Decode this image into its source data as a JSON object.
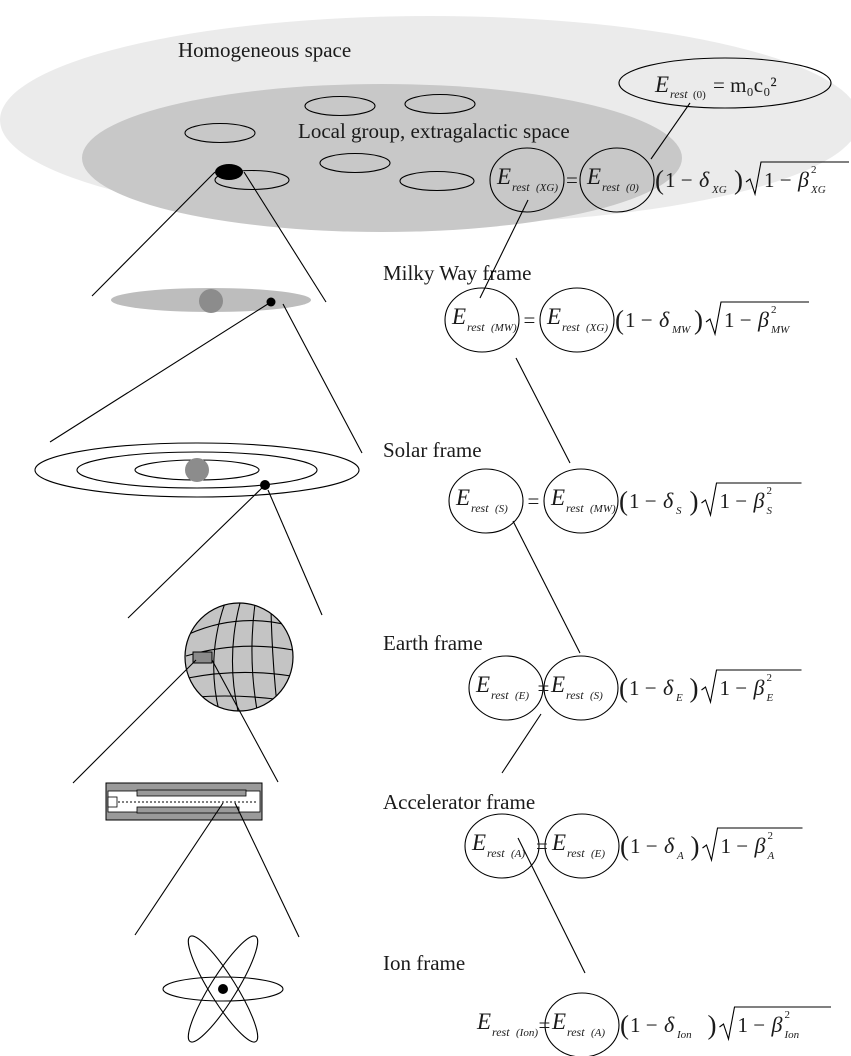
{
  "labels": {
    "homogeneous": "Homogeneous space",
    "local_group": "Local group, extragalactic space",
    "milky_way": "Milky Way frame",
    "solar": "Solar frame",
    "earth": "Earth frame",
    "accelerator": "Accelerator frame",
    "ion": "Ion frame"
  },
  "equations": {
    "base": {
      "lhs": "E",
      "lhs_sub": "rest(0)",
      "rhs": "= m₀c₀²"
    },
    "xg": {
      "lhs_sub": "XG",
      "rhs_sub": "0",
      "delta_sub": "XG",
      "beta_sub": "XG"
    },
    "mw": {
      "lhs_sub": "MW",
      "rhs_sub": "XG",
      "delta_sub": "MW",
      "beta_sub": "MW"
    },
    "s": {
      "lhs_sub": "S",
      "rhs_sub": "MW",
      "delta_sub": "S",
      "beta_sub": "S"
    },
    "e": {
      "lhs_sub": "E",
      "rhs_sub": "S",
      "delta_sub": "E",
      "beta_sub": "E"
    },
    "a": {
      "lhs_sub": "A",
      "rhs_sub": "E",
      "delta_sub": "A",
      "beta_sub": "A"
    },
    "ion": {
      "lhs_sub": "Ion",
      "rhs_sub": "A",
      "delta_sub": "Ion",
      "beta_sub": "Ion"
    }
  },
  "symbols": {
    "E": "E",
    "rest": "rest",
    "equals": "=",
    "one_minus": "1 −",
    "delta": "δ",
    "beta": "β",
    "sq": "2",
    "open_paren": "(",
    "close_paren": ")"
  },
  "colors": {
    "outer_space": "#ebebeb",
    "local_group": "#c8c8c8",
    "galaxy_disk": "#bdbdbd",
    "core": "#8c8c8c",
    "globe": "#c4c4c4",
    "accelerator": "#9a9a9a"
  }
}
